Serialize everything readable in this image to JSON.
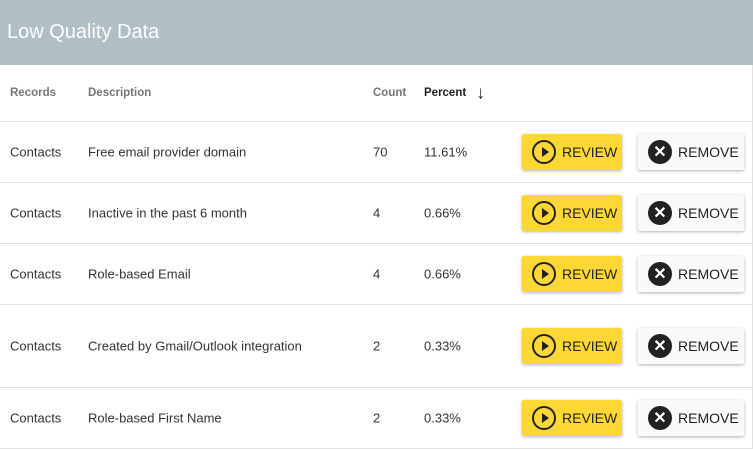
{
  "title": "Low Quality Data",
  "columns": {
    "records": "Records",
    "description": "Description",
    "count": "Count",
    "percent": "Percent"
  },
  "sort": {
    "column": "percent",
    "direction": "descending",
    "icon": "arrow-down-icon"
  },
  "buttons": {
    "review": "REVIEW",
    "remove": "REMOVE"
  },
  "colors": {
    "header": "#b0bec5",
    "review": "#fdd835"
  },
  "rows": [
    {
      "records": "Contacts",
      "description": "Free email provider domain",
      "count": "70",
      "percent": "11.61%"
    },
    {
      "records": "Contacts",
      "description": "Inactive in the past 6 month",
      "count": "4",
      "percent": "0.66%"
    },
    {
      "records": "Contacts",
      "description": "Role-based Email",
      "count": "4",
      "percent": "0.66%"
    },
    {
      "records": "Contacts",
      "description": "Created by Gmail/Outlook integration",
      "count": "2",
      "percent": "0.33%"
    },
    {
      "records": "Contacts",
      "description": "Role-based First Name",
      "count": "2",
      "percent": "0.33%"
    }
  ]
}
